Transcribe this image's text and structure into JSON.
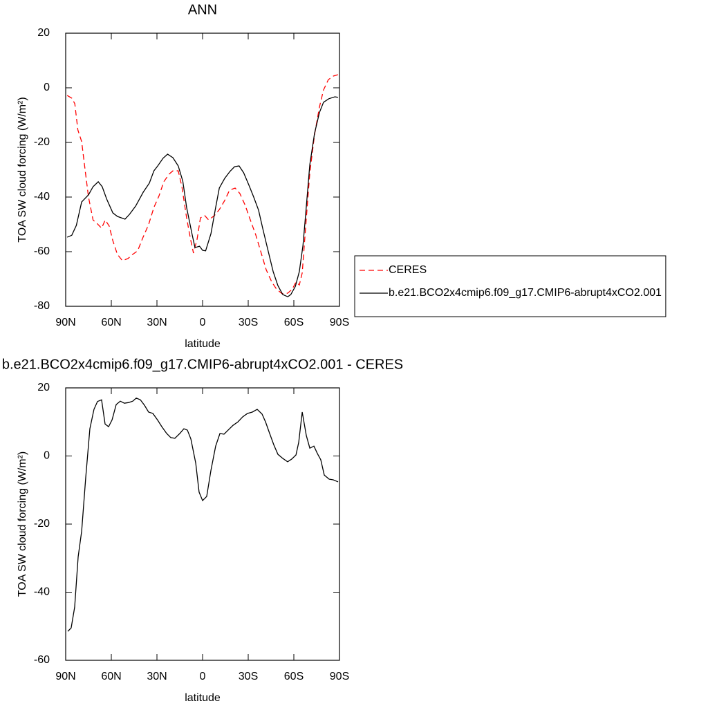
{
  "chart_data": [
    {
      "type": "line",
      "title": "ANN",
      "xlabel": "latitude",
      "ylabel": "TOA SW cloud forcing (W/m²)",
      "xlim": [
        90,
        -90
      ],
      "ylim": [
        20,
        -80
      ],
      "xticks": [
        {
          "value": 90,
          "label": "90N"
        },
        {
          "value": 60,
          "label": "60N"
        },
        {
          "value": 30,
          "label": "30N"
        },
        0,
        {
          "value": -30,
          "label": "30S"
        },
        {
          "value": -60,
          "label": "60S"
        },
        {
          "value": -90,
          "label": "90S"
        }
      ],
      "yticks": [
        20,
        0,
        -20,
        -40,
        -60,
        -80
      ],
      "legend": "right",
      "series": [
        {
          "name": "CERES",
          "color": "#ff0000",
          "dashed": true,
          "x": [
            89,
            86,
            84,
            82,
            79.5,
            77,
            75,
            72,
            69.5,
            66.4,
            64,
            61.4,
            59,
            56,
            52.7,
            49,
            46,
            42.7,
            39.5,
            35.5,
            32,
            28.6,
            25.5,
            22,
            19.5,
            16,
            13.6,
            10.5,
            8,
            6,
            3.6,
            1.4,
            -1.4,
            -4,
            -7.7,
            -11,
            -14.5,
            -17.7,
            -21.4,
            -24.5,
            -28,
            -31,
            -35,
            -38,
            -41.8,
            -45.5,
            -48.6,
            -52.3,
            -56,
            -59,
            -61.4,
            -63.6,
            -65.5,
            -67.7,
            -70.5,
            -73.6,
            -76.8,
            -79.5,
            -82.7,
            -86,
            -89
          ],
          "values": [
            -2.8,
            -3.8,
            -5.8,
            -15.4,
            -19.7,
            -31.1,
            -40,
            -48.4,
            -49.6,
            -51.4,
            -48.4,
            -50.6,
            -56,
            -61,
            -63.3,
            -62.5,
            -61,
            -59.7,
            -55.2,
            -50.1,
            -43.8,
            -39.5,
            -34.4,
            -31.6,
            -30.4,
            -30.4,
            -36.2,
            -47.6,
            -55.2,
            -60.5,
            -55.4,
            -47.6,
            -46.8,
            -48.4,
            -46.8,
            -44.6,
            -41.3,
            -37.5,
            -36.7,
            -38.7,
            -43,
            -47.8,
            -53.9,
            -59.5,
            -66.6,
            -71.1,
            -73.7,
            -75.4,
            -75.2,
            -73.7,
            -71.1,
            -72.2,
            -67.8,
            -51.4,
            -31.1,
            -17.2,
            -7.1,
            -0.8,
            3,
            4.3,
            4.8
          ]
        },
        {
          "name": "b.e21.BCO2x4cmip6.f09_g17.CMIP6-abrupt4xCO2.001",
          "color": "#000000",
          "dashed": false,
          "x": [
            89,
            86,
            83,
            79.5,
            75,
            72,
            68.6,
            66,
            63,
            59,
            56,
            51,
            48,
            44,
            39,
            35,
            32,
            29.5,
            26,
            23,
            19.5,
            16,
            13,
            10.5,
            7,
            5,
            2,
            0,
            -2,
            -5.5,
            -8.6,
            -11,
            -14.5,
            -18,
            -21,
            -24,
            -27,
            -30.5,
            -33.6,
            -36.8,
            -39.5,
            -43,
            -46.4,
            -49.5,
            -52.7,
            -56,
            -58,
            -61,
            -63.6,
            -66,
            -67.7,
            -70.5,
            -73.6,
            -76.8,
            -79.5,
            -83,
            -87,
            -89
          ],
          "values": [
            -54.7,
            -54,
            -50.4,
            -41.8,
            -39.2,
            -36.2,
            -34.4,
            -36.2,
            -40.8,
            -45.8,
            -47.1,
            -48.1,
            -46.3,
            -43.3,
            -38.2,
            -34.9,
            -30.4,
            -28.6,
            -25.8,
            -24.3,
            -25.6,
            -28.6,
            -34.2,
            -43.8,
            -53.4,
            -58.5,
            -58,
            -59.5,
            -59.7,
            -53.4,
            -43.8,
            -36.7,
            -33.2,
            -30.6,
            -28.9,
            -28.6,
            -31.1,
            -35.7,
            -40,
            -44.8,
            -51.4,
            -59.5,
            -67.3,
            -72.4,
            -75.7,
            -76.5,
            -75.7,
            -72.7,
            -67.3,
            -57.7,
            -46.8,
            -28.1,
            -16.7,
            -9.1,
            -5.3,
            -4,
            -3.3,
            -3.5
          ]
        }
      ]
    },
    {
      "type": "line",
      "title": "b.e21.BCO2x4cmip6.f09_g17.CMIP6-abrupt4xCO2.001 - CERES",
      "xlabel": "latitude",
      "ylabel": "TOA SW cloud forcing (W/m²)",
      "xlim": [
        90,
        -90
      ],
      "ylim": [
        20,
        -60
      ],
      "xticks": [
        {
          "value": 90,
          "label": "90N"
        },
        {
          "value": 60,
          "label": "60N"
        },
        {
          "value": 30,
          "label": "30N"
        },
        0,
        {
          "value": -30,
          "label": "30S"
        },
        {
          "value": -60,
          "label": "60S"
        },
        {
          "value": -90,
          "label": "90S"
        }
      ],
      "yticks": [
        20,
        0,
        -20,
        -40,
        -60
      ],
      "series": [
        {
          "color": "#000000",
          "dashed": false,
          "x": [
            88.6,
            86.4,
            84.1,
            81.8,
            79.5,
            76.8,
            74.1,
            71.4,
            69.1,
            66.4,
            64.1,
            61.8,
            59.5,
            56.8,
            54.1,
            51.4,
            48.6,
            45.9,
            43.6,
            40.9,
            38.2,
            35.5,
            32.7,
            29.5,
            26.8,
            23.6,
            20.9,
            18.2,
            15,
            12.3,
            10,
            7.7,
            4.5,
            2.3,
            0,
            -2.7,
            -5.5,
            -8.6,
            -11.4,
            -14.1,
            -16.8,
            -20,
            -23.2,
            -26.4,
            -29.5,
            -32.7,
            -35.9,
            -39.1,
            -41.4,
            -44.1,
            -46.8,
            -49.5,
            -52.7,
            -55.9,
            -58.6,
            -61.4,
            -63.2,
            -65.5,
            -68.2,
            -70.5,
            -73.2,
            -75.5,
            -77.7,
            -80,
            -83.2,
            -85.9,
            -89.1
          ],
          "values": [
            -51.5,
            -50.5,
            -44.4,
            -29.6,
            -22.1,
            -6.2,
            8,
            13.7,
            16,
            16.5,
            9.4,
            8.6,
            10.6,
            15.1,
            16.1,
            15.5,
            15.7,
            16.1,
            17,
            16.5,
            14.9,
            12.9,
            12.5,
            10.5,
            8.6,
            6.6,
            5.4,
            5.2,
            6.6,
            8,
            7.6,
            5,
            -2.1,
            -10.6,
            -13.1,
            -11.9,
            -4.2,
            2.9,
            6.6,
            6.4,
            7.6,
            9,
            10,
            11.5,
            12.5,
            12.9,
            13.7,
            12.3,
            10,
            6.6,
            3.3,
            0.5,
            -0.7,
            -1.7,
            -0.9,
            0.3,
            4,
            12.9,
            6,
            2.3,
            2.9,
            0.7,
            -1.1,
            -5.6,
            -6.8,
            -7,
            -7.6
          ]
        }
      ]
    }
  ]
}
